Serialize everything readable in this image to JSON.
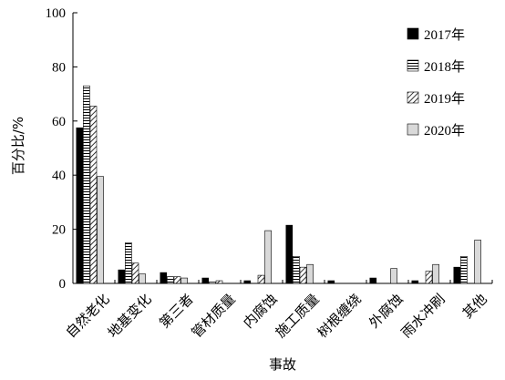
{
  "chart_data": {
    "type": "bar",
    "title": "",
    "xlabel": "事故",
    "ylabel": "百分比/%",
    "ylim": [
      0,
      100
    ],
    "yticks": [
      "0",
      "20",
      "40",
      "60",
      "80",
      "100"
    ],
    "grid": false,
    "legend_position": "top-right",
    "categories": [
      "自然老化",
      "地基变化",
      "第三者",
      "管材质量",
      "内腐蚀",
      "施工质量",
      "树根缠绕",
      "外腐蚀",
      "雨水冲刷",
      "其他"
    ],
    "series": [
      {
        "name": "2017年",
        "pattern": "solid-black",
        "values": [
          57.5,
          5,
          4,
          2,
          1,
          21.5,
          1,
          2,
          1,
          6
        ]
      },
      {
        "name": "2018年",
        "pattern": "horizontal-lines",
        "values": [
          73,
          15,
          2.5,
          0.5,
          0,
          10,
          0,
          0,
          0,
          10
        ]
      },
      {
        "name": "2019年",
        "pattern": "diagonal-lines",
        "values": [
          65.5,
          7.5,
          2.5,
          1,
          3,
          6,
          0,
          0,
          4.5,
          0
        ]
      },
      {
        "name": "2020年",
        "pattern": "light-gray",
        "values": [
          39.5,
          3.5,
          2,
          0,
          19.5,
          7,
          0,
          5.5,
          7,
          16
        ]
      }
    ]
  }
}
